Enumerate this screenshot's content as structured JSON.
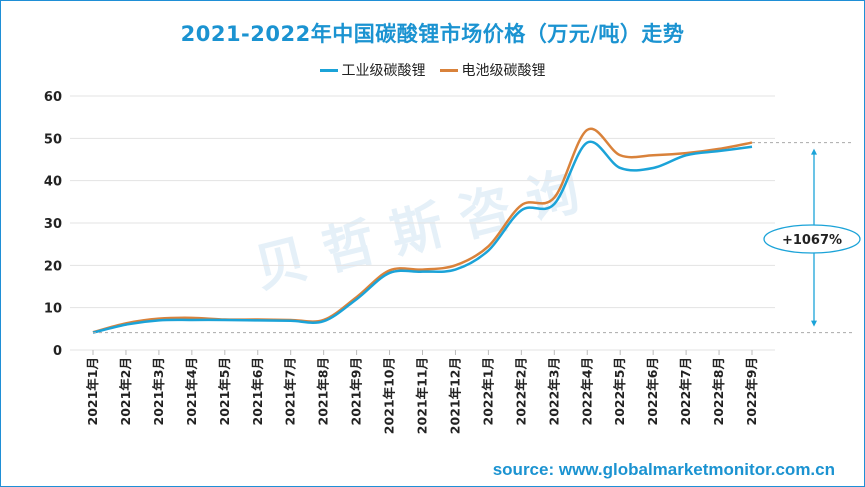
{
  "title": "2021-2022年中国碳酸锂市场价格（万元/吨）走势",
  "source": "source: www.globalmarketmonitor.com.cn",
  "watermark": "贝哲斯咨询",
  "colors": {
    "industrial": "#1ba3d8",
    "battery": "#d9823b",
    "accent": "#1b93d1"
  },
  "annotation": {
    "label": "+1067%"
  },
  "chart_data": {
    "type": "line",
    "title": "2021-2022年中国碳酸锂市场价格（万元/吨）走势",
    "xlabel": "",
    "ylabel": "",
    "ylim": [
      0,
      60
    ],
    "yticks": [
      0,
      10,
      20,
      30,
      40,
      50,
      60
    ],
    "grid": true,
    "legend": "top",
    "categories": [
      "2021年1月",
      "2021年2月",
      "2021年3月",
      "2021年4月",
      "2021年5月",
      "2021年6月",
      "2021年7月",
      "2021年8月",
      "2021年9月",
      "2021年10月",
      "2021年11月",
      "2021年12月",
      "2022年1月",
      "2022年2月",
      "2022年3月",
      "2022年4月",
      "2022年5月",
      "2022年6月",
      "2022年7月",
      "2022年8月",
      "2022年9月"
    ],
    "series": [
      {
        "name": "工业级碳酸锂",
        "color": "#1ba3d8",
        "values": [
          4.1,
          6.0,
          7.0,
          7.1,
          7.1,
          7.0,
          6.9,
          6.8,
          12.0,
          18.2,
          18.5,
          19.0,
          23.5,
          33.0,
          34.5,
          49.0,
          43.0,
          43.0,
          46.0,
          47.0,
          48.0
        ]
      },
      {
        "name": "电池级碳酸锂",
        "color": "#d9823b",
        "values": [
          4.2,
          6.3,
          7.4,
          7.6,
          7.2,
          7.2,
          7.1,
          7.1,
          12.5,
          18.8,
          19.0,
          20.0,
          24.5,
          34.2,
          36.0,
          52.0,
          46.0,
          46.0,
          46.5,
          47.5,
          49.0
        ]
      }
    ]
  }
}
